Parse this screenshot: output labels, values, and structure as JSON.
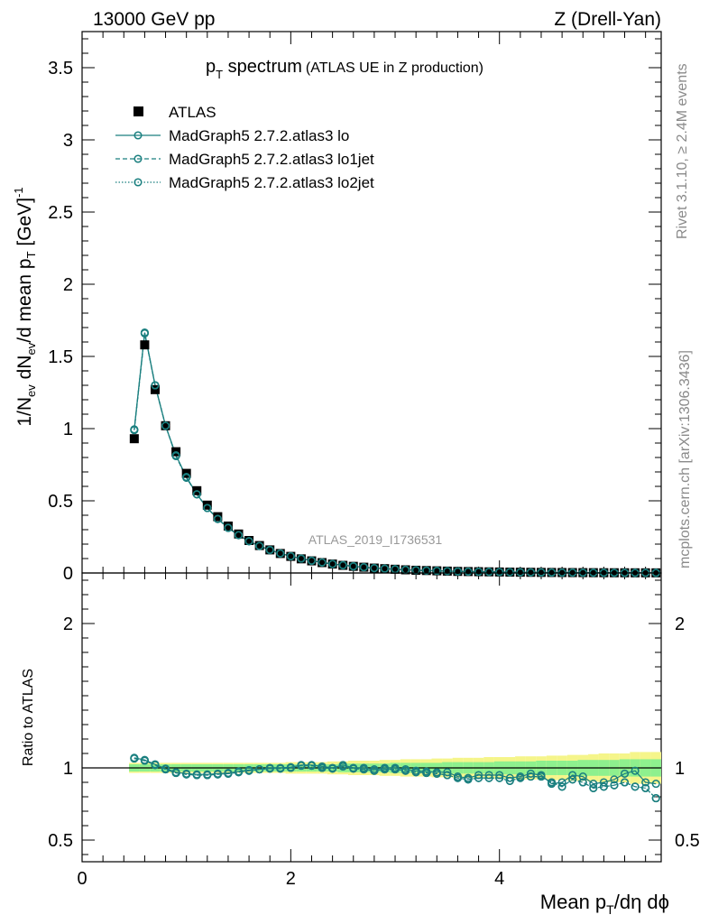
{
  "header": {
    "left": "13000 GeV pp",
    "right": "Z (Drell-Yan)"
  },
  "side": {
    "events": "Rivet 3.1.10, ≥ 2.4M events",
    "source": "mcplots.cern.ch [arXiv:1306.3436]"
  },
  "chart_data": {
    "type": "scatter",
    "title_p": "p",
    "title_sub": "T",
    "title_main": " spectrum",
    "title_paren": "(ATLAS UE in Z production)",
    "analysis": "ATLAS_2019_I1736531",
    "ylabel_a": "1/N",
    "ylabel_sub1": "ev",
    "ylabel_b": " dN",
    "ylabel_sub2": "ev",
    "ylabel_c": "/d mean p",
    "ylabel_sub3": "T",
    "ylabel_d": " [GeV]",
    "ylabel_sup": "-1",
    "ratio_ylabel": "Ratio to ATLAS",
    "xlabel_a": "Mean p",
    "xlabel_sub": "T",
    "xlabel_b": "/dη dϕ",
    "xlim": [
      0,
      5.55
    ],
    "ylim": [
      0,
      3.75
    ],
    "ratio_ylim": [
      0.35,
      2.35
    ],
    "xticks": [
      "0",
      "2",
      "4"
    ],
    "yticks": [
      "0",
      "0.5",
      "1",
      "1.5",
      "2",
      "2.5",
      "3",
      "3.5"
    ],
    "ratio_yticks": [
      "0.5",
      "1",
      "2"
    ],
    "legend_position": "top-left",
    "x": [
      0.5,
      0.6,
      0.7,
      0.8,
      0.9,
      1.0,
      1.1,
      1.2,
      1.3,
      1.4,
      1.5,
      1.6,
      1.7,
      1.8,
      1.9,
      2.0,
      2.1,
      2.2,
      2.3,
      2.4,
      2.5,
      2.6,
      2.7,
      2.8,
      2.9,
      3.0,
      3.1,
      3.2,
      3.3,
      3.4,
      3.5,
      3.6,
      3.7,
      3.8,
      3.9,
      4.0,
      4.1,
      4.2,
      4.3,
      4.4,
      4.5,
      4.6,
      4.7,
      4.8,
      4.9,
      5.0,
      5.1,
      5.2,
      5.3,
      5.4,
      5.5
    ],
    "series": [
      {
        "name": "ATLAS",
        "style": "data",
        "color": "#000000",
        "values": [
          0.93,
          1.58,
          1.27,
          1.02,
          0.84,
          0.69,
          0.57,
          0.47,
          0.39,
          0.325,
          0.27,
          0.225,
          0.19,
          0.16,
          0.135,
          0.115,
          0.098,
          0.084,
          0.072,
          0.062,
          0.053,
          0.046,
          0.04,
          0.034,
          0.03,
          0.026,
          0.022,
          0.019,
          0.017,
          0.015,
          0.013,
          0.011,
          0.01,
          0.009,
          0.008,
          0.007,
          0.006,
          0.0053,
          0.0047,
          0.0041,
          0.0036,
          0.0032,
          0.0028,
          0.0025,
          0.0022,
          0.0019,
          0.0017,
          0.0015,
          0.0013,
          0.0012,
          0.001
        ]
      },
      {
        "name": "MadGraph5 2.7.2.atlas3 lo",
        "style": "solid",
        "color": "#1a7f7f",
        "values": [
          0.995,
          1.665,
          1.3,
          1.02,
          0.815,
          0.665,
          0.545,
          0.45,
          0.375,
          0.313,
          0.262,
          0.22,
          0.187,
          0.16,
          0.136,
          0.116,
          0.1,
          0.085,
          0.073,
          0.063,
          0.054,
          0.047,
          0.04,
          0.034,
          0.03,
          0.026,
          0.022,
          0.019,
          0.017,
          0.015,
          0.013,
          0.011,
          0.01,
          0.009,
          0.008,
          0.007,
          0.006,
          0.005,
          0.0045,
          0.004,
          0.0033,
          0.0029,
          0.0027,
          0.0024,
          0.002,
          0.0018,
          0.0016,
          0.0014,
          0.0012,
          0.0011,
          0.0009
        ]
      },
      {
        "name": "MadGraph5 2.7.2.atlas3 lo1jet",
        "style": "dashed",
        "color": "#1a7f7f",
        "values": [
          0.99,
          1.66,
          1.3,
          1.02,
          0.81,
          0.66,
          0.545,
          0.45,
          0.374,
          0.312,
          0.262,
          0.22,
          0.187,
          0.159,
          0.136,
          0.116,
          0.1,
          0.085,
          0.073,
          0.062,
          0.054,
          0.046,
          0.04,
          0.034,
          0.03,
          0.026,
          0.022,
          0.019,
          0.017,
          0.015,
          0.013,
          0.011,
          0.01,
          0.009,
          0.008,
          0.007,
          0.006,
          0.005,
          0.0045,
          0.004,
          0.0033,
          0.0029,
          0.0027,
          0.0024,
          0.002,
          0.0018,
          0.0016,
          0.0014,
          0.0012,
          0.0011,
          0.0009
        ]
      },
      {
        "name": "MadGraph5 2.7.2.atlas3 lo2jet",
        "style": "dotted",
        "color": "#1a7f7f",
        "values": [
          0.99,
          1.66,
          1.3,
          1.02,
          0.81,
          0.66,
          0.545,
          0.45,
          0.374,
          0.312,
          0.262,
          0.22,
          0.187,
          0.159,
          0.136,
          0.116,
          0.1,
          0.085,
          0.073,
          0.062,
          0.054,
          0.046,
          0.04,
          0.034,
          0.03,
          0.026,
          0.022,
          0.019,
          0.017,
          0.015,
          0.013,
          0.011,
          0.01,
          0.009,
          0.008,
          0.007,
          0.006,
          0.005,
          0.0045,
          0.004,
          0.0033,
          0.0029,
          0.0027,
          0.0024,
          0.002,
          0.0018,
          0.0016,
          0.0014,
          0.0012,
          0.0011,
          0.0009
        ]
      }
    ],
    "ratio_series": [
      {
        "name": "MadGraph5 2.7.2.atlas3 lo",
        "values": [
          1.07,
          1.055,
          1.025,
          0.995,
          0.97,
          0.96,
          0.955,
          0.955,
          0.96,
          0.965,
          0.975,
          0.985,
          0.99,
          1.0,
          1.0,
          1.005,
          1.02,
          1.02,
          1.01,
          1.0,
          1.02,
          1.0,
          1.0,
          0.99,
          1.0,
          1.0,
          0.99,
          0.98,
          0.975,
          0.97,
          0.97,
          0.94,
          0.93,
          0.95,
          0.95,
          0.95,
          0.93,
          0.94,
          0.96,
          0.95,
          0.89,
          0.9,
          0.95,
          0.94,
          0.89,
          0.9,
          0.92,
          0.96,
          0.98,
          0.9,
          0.89
        ]
      },
      {
        "name": "MadGraph5 2.7.2.atlas3 lo1jet",
        "values": [
          1.065,
          1.05,
          1.02,
          0.99,
          0.965,
          0.955,
          0.95,
          0.95,
          0.955,
          0.96,
          0.97,
          0.98,
          0.99,
          0.995,
          0.995,
          1.0,
          1.015,
          1.015,
          1.0,
          0.995,
          1.01,
          0.995,
          0.99,
          0.98,
          0.99,
          0.99,
          0.98,
          0.97,
          0.965,
          0.96,
          0.95,
          0.93,
          0.92,
          0.93,
          0.93,
          0.93,
          0.91,
          0.93,
          0.94,
          0.94,
          0.9,
          0.87,
          0.92,
          0.9,
          0.86,
          0.87,
          0.88,
          0.9,
          0.87,
          0.86,
          0.79
        ]
      },
      {
        "name": "MadGraph5 2.7.2.atlas3 lo2jet",
        "values": [
          1.065,
          1.05,
          1.02,
          0.99,
          0.965,
          0.955,
          0.95,
          0.95,
          0.955,
          0.96,
          0.97,
          0.98,
          0.99,
          0.995,
          0.995,
          1.0,
          1.015,
          1.015,
          1.0,
          0.995,
          1.01,
          0.995,
          0.99,
          0.98,
          0.99,
          0.99,
          0.98,
          0.97,
          0.965,
          0.96,
          0.95,
          0.93,
          0.92,
          0.93,
          0.93,
          0.93,
          0.91,
          0.93,
          0.94,
          0.94,
          0.9,
          0.87,
          0.92,
          0.9,
          0.86,
          0.87,
          0.88,
          0.9,
          0.87,
          0.86,
          0.79
        ]
      }
    ],
    "ratio_band_stat": [
      0.025,
      0.025,
      0.025,
      0.025,
      0.025,
      0.025,
      0.025,
      0.025,
      0.025,
      0.025,
      0.025,
      0.025,
      0.025,
      0.025,
      0.025,
      0.025,
      0.025,
      0.025,
      0.025,
      0.025,
      0.03,
      0.03,
      0.03,
      0.03,
      0.03,
      0.035,
      0.035,
      0.035,
      0.035,
      0.035,
      0.04,
      0.04,
      0.04,
      0.04,
      0.04,
      0.045,
      0.045,
      0.045,
      0.045,
      0.05,
      0.05,
      0.05,
      0.05,
      0.055,
      0.055,
      0.055,
      0.055,
      0.06,
      0.06,
      0.06,
      0.06
    ],
    "ratio_band_total": [
      0.035,
      0.035,
      0.035,
      0.035,
      0.035,
      0.035,
      0.035,
      0.035,
      0.035,
      0.035,
      0.035,
      0.035,
      0.035,
      0.035,
      0.035,
      0.04,
      0.04,
      0.04,
      0.04,
      0.045,
      0.045,
      0.05,
      0.05,
      0.05,
      0.055,
      0.055,
      0.06,
      0.06,
      0.06,
      0.065,
      0.065,
      0.07,
      0.07,
      0.07,
      0.075,
      0.075,
      0.075,
      0.08,
      0.08,
      0.08,
      0.085,
      0.085,
      0.09,
      0.09,
      0.095,
      0.1,
      0.1,
      0.1,
      0.11,
      0.11,
      0.11
    ],
    "band_colors": {
      "stat": "#8ef08e",
      "total": "#f5f58a"
    }
  }
}
